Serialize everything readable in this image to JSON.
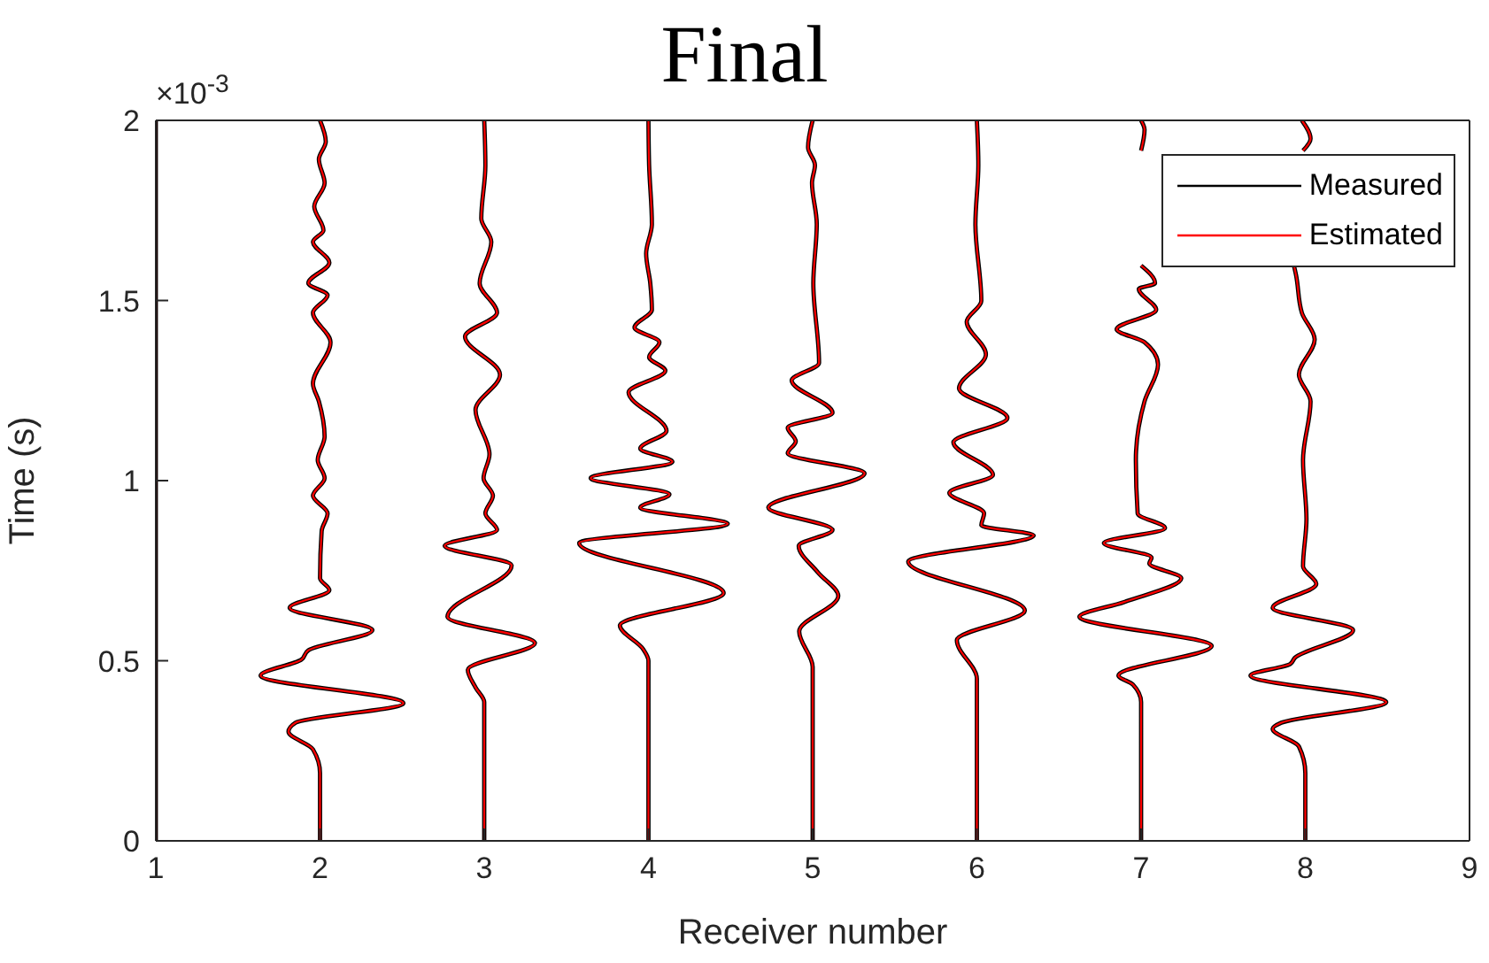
{
  "chart_data": {
    "type": "line",
    "title": "Final",
    "xlabel": "Receiver number",
    "ylabel": "Time (s)",
    "annotations": [
      "×10$^{-3}$"
    ],
    "xlim": [
      1,
      9
    ],
    "xticks": [
      1,
      2,
      3,
      4,
      5,
      6,
      7,
      8,
      9
    ],
    "ylim": [
      0,
      2
    ],
    "yticks": [
      0,
      0.5,
      1,
      1.5,
      2
    ],
    "legend": "top right",
    "marker": "none",
    "line_style": "solid",
    "series": [
      {
        "name": "Measured",
        "color": "#000000",
        "x": [
          1,
          1,
          null,
          2,
          2,
          1.957,
          1.808,
          1.851,
          2.508,
          1.638,
          1.886,
          1.929,
          2.319,
          1.815,
          2.057,
          2,
          2.01,
          2.046,
          1.957,
          2.028,
          1.986,
          2.028,
          1.993,
          1.957,
          2.064,
          1.957,
          2.046,
          1.929,
          2.057,
          1.957,
          2.021,
          1.965,
          2.028,
          1.993,
          2.035,
          2,
          null,
          3,
          3,
          2.947,
          2.9,
          3.309,
          2.776,
          3.167,
          2.759,
          3.078,
          3.007,
          3.053,
          2.996,
          3.032,
          2.947,
          3.096,
          2.883,
          3.078,
          2.972,
          3.043,
          2.982,
          3.007,
          3,
          null,
          4,
          4,
          3.968,
          3.826,
          4.458,
          3.578,
          4.483,
          3.95,
          4.128,
          3.648,
          4.146,
          3.95,
          4.11,
          3.879,
          4.103,
          4.004,
          4.067,
          3.915,
          4.021,
          4.011,
          3.986,
          4.021,
          4.004,
          4,
          null,
          5,
          5,
          4.918,
          5.156,
          5.032,
          4.915,
          5.121,
          4.73,
          5.316,
          4.848,
          4.897,
          4.848,
          5.121,
          4.872,
          5.039,
          5.004,
          5.025,
          4.996,
          5.014,
          4.972,
          5,
          null,
          6,
          6,
          5.878,
          6.292,
          5.582,
          6.346,
          6.027,
          6.044,
          5.832,
          6.098,
          5.857,
          6.186,
          5.891,
          6.055,
          5.938,
          6.027,
          5.991,
          6.009,
          6,
          null,
          7,
          7,
          6.95,
          6.862,
          7.43,
          6.624,
          6.897,
          7.245,
          7.05,
          7.064,
          6.773,
          7.146,
          6.979,
          6.968,
          7.021,
          7.103,
          7.021,
          6.851,
          7.092,
          6.986,
          7.085,
          7,
          null,
          7,
          7.021,
          7,
          null,
          8,
          8,
          7.961,
          7.801,
          7.854,
          8.493,
          7.666,
          7.908,
          7.936,
          8.291,
          7.801,
          8.067,
          7.986,
          8.007,
          7.986,
          8.032,
          7.961,
          8.057,
          7.979,
          7.943,
          7.929,
          null,
          7.986,
          8.032,
          7.979
        ],
        "values": [
          0,
          2,
          null,
          0,
          0.188,
          0.254,
          0.303,
          0.328,
          0.382,
          0.459,
          0.503,
          0.529,
          0.585,
          0.647,
          0.696,
          0.729,
          0.86,
          0.909,
          0.958,
          1.007,
          1.057,
          1.122,
          1.22,
          1.269,
          1.384,
          1.466,
          1.515,
          1.548,
          1.605,
          1.663,
          1.695,
          1.761,
          1.826,
          1.892,
          1.941,
          2,
          null,
          0,
          0.385,
          0.426,
          0.475,
          0.549,
          0.622,
          0.765,
          0.819,
          0.863,
          0.909,
          0.958,
          1.007,
          1.073,
          1.196,
          1.294,
          1.4,
          1.466,
          1.548,
          1.663,
          1.728,
          1.875,
          2,
          null,
          0,
          0.5,
          0.532,
          0.598,
          0.688,
          0.827,
          0.88,
          0.925,
          0.962,
          1.007,
          1.052,
          1.089,
          1.138,
          1.245,
          1.305,
          1.343,
          1.384,
          1.425,
          1.474,
          1.548,
          1.63,
          1.712,
          1.876,
          2,
          null,
          0,
          0.483,
          0.581,
          0.68,
          0.745,
          0.819,
          0.863,
          0.925,
          1.02,
          1.076,
          1.109,
          1.147,
          1.188,
          1.278,
          1.327,
          1.548,
          1.712,
          1.826,
          1.876,
          1.925,
          2,
          null,
          0,
          0.45,
          0.557,
          0.639,
          0.775,
          0.848,
          0.876,
          0.909,
          0.966,
          1.016,
          1.106,
          1.174,
          1.256,
          1.351,
          1.441,
          1.499,
          1.712,
          1.876,
          2,
          null,
          0,
          0.385,
          0.434,
          0.459,
          0.541,
          0.622,
          0.663,
          0.729,
          0.77,
          0.786,
          0.827,
          0.868,
          0.909,
          1.057,
          1.22,
          1.322,
          1.384,
          1.42,
          1.474,
          1.532,
          1.548,
          1.597,
          null,
          1.916,
          1.974,
          2,
          null,
          0,
          0.188,
          0.262,
          0.311,
          0.328,
          0.385,
          0.459,
          0.491,
          0.508,
          0.585,
          0.647,
          0.713,
          0.762,
          0.893,
          1.057,
          1.22,
          1.294,
          1.392,
          1.466,
          1.572,
          1.6,
          null,
          1.916,
          1.949,
          2
        ]
      },
      {
        "name": "Estimated",
        "color": "#ff0000",
        "x": [
          1,
          1,
          null,
          2,
          2,
          1.957,
          1.808,
          1.851,
          2.508,
          1.638,
          1.886,
          1.929,
          2.319,
          1.815,
          2.057,
          2,
          2.01,
          2.046,
          1.957,
          2.028,
          1.986,
          2.028,
          1.993,
          1.957,
          2.064,
          1.957,
          2.046,
          1.929,
          2.057,
          1.957,
          2.021,
          1.965,
          2.028,
          1.993,
          2.035,
          2,
          null,
          3,
          3,
          2.947,
          2.9,
          3.309,
          2.776,
          3.167,
          2.759,
          3.078,
          3.007,
          3.053,
          2.996,
          3.032,
          2.947,
          3.096,
          2.883,
          3.078,
          2.972,
          3.043,
          2.982,
          3.007,
          3,
          null,
          4,
          4,
          3.968,
          3.826,
          4.458,
          3.578,
          4.483,
          3.95,
          4.128,
          3.648,
          4.146,
          3.95,
          4.11,
          3.879,
          4.103,
          4.004,
          4.067,
          3.915,
          4.021,
          4.011,
          3.986,
          4.021,
          4.004,
          4,
          null,
          5,
          5,
          4.918,
          5.156,
          5.032,
          4.915,
          5.121,
          4.73,
          5.316,
          4.848,
          4.897,
          4.848,
          5.121,
          4.872,
          5.039,
          5.004,
          5.025,
          4.996,
          5.014,
          4.972,
          5,
          null,
          6,
          6,
          5.878,
          6.292,
          5.582,
          6.346,
          6.027,
          6.044,
          5.832,
          6.098,
          5.857,
          6.186,
          5.891,
          6.055,
          5.938,
          6.027,
          5.991,
          6.009,
          6,
          null,
          7,
          7,
          6.95,
          6.862,
          7.43,
          6.624,
          6.897,
          7.245,
          7.05,
          7.064,
          6.773,
          7.146,
          6.979,
          6.968,
          7.021,
          7.103,
          7.021,
          6.851,
          7.092,
          6.986,
          7.085,
          7,
          null,
          7,
          7.021,
          7,
          null,
          8,
          8,
          7.961,
          7.801,
          7.854,
          8.493,
          7.666,
          7.908,
          7.936,
          8.291,
          7.801,
          8.067,
          7.986,
          8.007,
          7.986,
          8.032,
          7.961,
          8.057,
          7.979,
          7.943,
          7.929,
          null,
          7.986,
          8.032,
          7.979
        ],
        "values": [
          0,
          2,
          null,
          0,
          0.188,
          0.254,
          0.303,
          0.328,
          0.382,
          0.459,
          0.503,
          0.529,
          0.585,
          0.647,
          0.696,
          0.729,
          0.86,
          0.909,
          0.958,
          1.007,
          1.057,
          1.122,
          1.22,
          1.269,
          1.384,
          1.466,
          1.515,
          1.548,
          1.605,
          1.663,
          1.695,
          1.761,
          1.826,
          1.892,
          1.941,
          2,
          null,
          0,
          0.385,
          0.426,
          0.475,
          0.549,
          0.622,
          0.765,
          0.819,
          0.863,
          0.909,
          0.958,
          1.007,
          1.073,
          1.196,
          1.294,
          1.4,
          1.466,
          1.548,
          1.663,
          1.728,
          1.875,
          2,
          null,
          0,
          0.5,
          0.532,
          0.598,
          0.688,
          0.827,
          0.88,
          0.925,
          0.962,
          1.007,
          1.052,
          1.089,
          1.138,
          1.245,
          1.305,
          1.343,
          1.384,
          1.425,
          1.474,
          1.548,
          1.63,
          1.712,
          1.876,
          2,
          null,
          0,
          0.483,
          0.581,
          0.68,
          0.745,
          0.819,
          0.863,
          0.925,
          1.02,
          1.076,
          1.109,
          1.147,
          1.188,
          1.278,
          1.327,
          1.548,
          1.712,
          1.826,
          1.876,
          1.925,
          2,
          null,
          0,
          0.45,
          0.557,
          0.639,
          0.775,
          0.848,
          0.876,
          0.909,
          0.966,
          1.016,
          1.106,
          1.174,
          1.256,
          1.351,
          1.441,
          1.499,
          1.712,
          1.876,
          2,
          null,
          0,
          0.385,
          0.434,
          0.459,
          0.541,
          0.622,
          0.663,
          0.729,
          0.77,
          0.786,
          0.827,
          0.868,
          0.909,
          1.057,
          1.22,
          1.322,
          1.384,
          1.42,
          1.474,
          1.532,
          1.548,
          1.597,
          null,
          1.916,
          1.974,
          2,
          null,
          0,
          0.188,
          0.262,
          0.311,
          0.328,
          0.385,
          0.459,
          0.491,
          0.508,
          0.585,
          0.647,
          0.713,
          0.762,
          0.893,
          1.057,
          1.22,
          1.294,
          1.392,
          1.466,
          1.572,
          1.6,
          null,
          1.916,
          1.949,
          2
        ]
      }
    ]
  }
}
